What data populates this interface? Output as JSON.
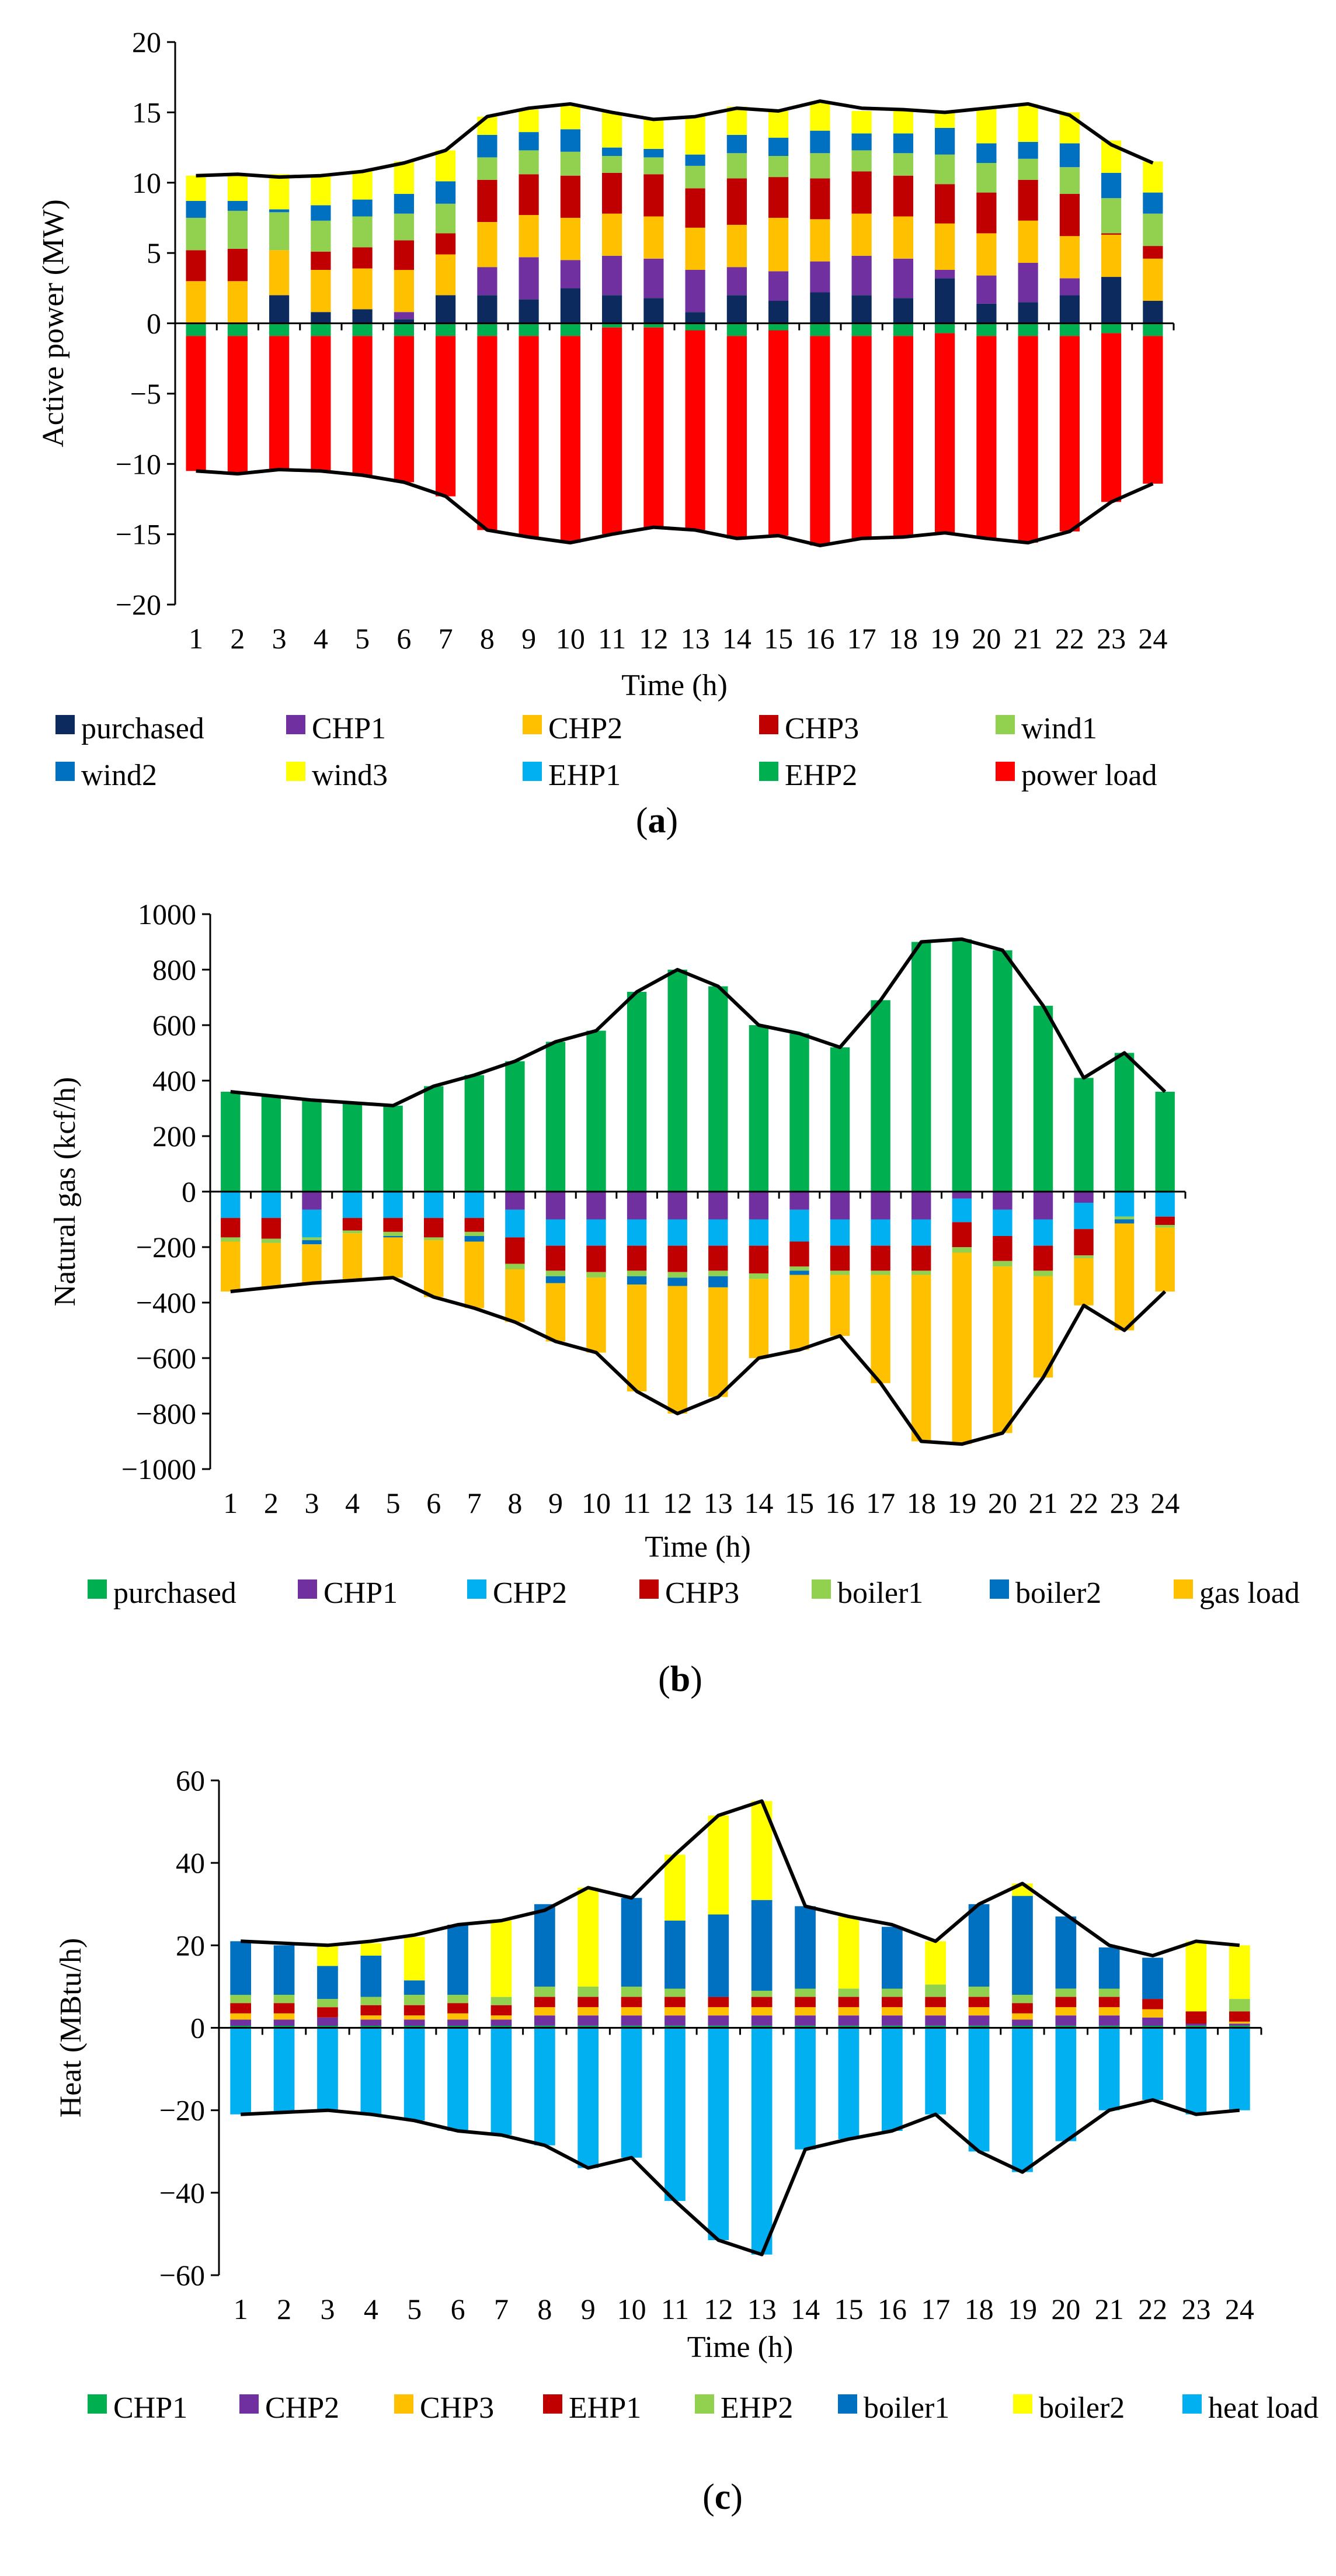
{
  "colors": {
    "purchased_power": "#0d2a5e",
    "chp1": "#7030a0",
    "chp2_power": "#ffc000",
    "chp3": "#c00000",
    "wind1": "#92d050",
    "wind2": "#0070c0",
    "wind3": "#ffff00",
    "ehp1_power": "#00b0f0",
    "ehp2_power": "#00b050",
    "power_load": "#ff0000",
    "purchased_gas": "#00b050",
    "chp2_gas": "#00b0f0",
    "boiler1": "#92d050",
    "boiler2": "#0070c0",
    "gas_load": "#ffc000",
    "chp1_heat": "#00b050",
    "chp2_heat": "#7030a0",
    "chp3_heat": "#ffc000",
    "ehp1_heat": "#c00000",
    "boiler1_heat": "#0070c0",
    "boiler2_heat": "#ffff00",
    "heat_load": "#00b0f0"
  },
  "chart_data": [
    {
      "id": "a",
      "type": "bar",
      "stacked": true,
      "caption_pre": "(",
      "caption_letter": "a",
      "caption_post": ")",
      "xlabel": "Time (h)",
      "ylabel": "Active power (MW)",
      "ylim": [
        -20,
        20
      ],
      "yticks": [
        -20,
        -15,
        -10,
        -5,
        0,
        5,
        10,
        15,
        20
      ],
      "ytick_labels": [
        "−20",
        "−15",
        "−10",
        "−5",
        "0",
        "5",
        "10",
        "15",
        "20"
      ],
      "categories": [
        "1",
        "2",
        "3",
        "4",
        "5",
        "6",
        "7",
        "8",
        "9",
        "10",
        "11",
        "12",
        "13",
        "14",
        "15",
        "16",
        "17",
        "18",
        "19",
        "20",
        "21",
        "22",
        "23",
        "24"
      ],
      "legend_cols": 5,
      "series": [
        {
          "name": "purchased",
          "color": "#0d2a5e",
          "values": [
            0,
            0,
            2,
            0.8,
            1,
            0.3,
            2,
            2,
            1.7,
            2.5,
            2,
            1.8,
            0.8,
            2,
            1.6,
            2.2,
            2,
            1.8,
            3.2,
            1.4,
            1.5,
            2,
            3.3,
            1.6
          ]
        },
        {
          "name": "CHP1",
          "color": "#7030a0",
          "values": [
            0,
            0,
            0,
            0,
            0,
            0.5,
            0,
            2,
            3,
            2,
            2.8,
            2.8,
            3,
            2,
            2.1,
            2.2,
            2.8,
            2.8,
            0.6,
            2,
            2.8,
            1.2,
            0,
            0
          ]
        },
        {
          "name": "CHP2",
          "color": "#ffc000",
          "values": [
            3,
            3,
            3.2,
            3,
            2.9,
            3,
            2.9,
            3.2,
            3,
            3,
            3,
            3,
            3,
            3,
            3.8,
            3,
            3,
            3,
            3.3,
            3,
            3,
            3,
            3,
            3
          ]
        },
        {
          "name": "CHP3",
          "color": "#c00000",
          "values": [
            2.2,
            2.3,
            0,
            1.3,
            1.5,
            2.1,
            1.5,
            3,
            2.9,
            3,
            2.9,
            3,
            2.8,
            3.3,
            2.9,
            2.9,
            3,
            2.9,
            2.8,
            2.9,
            2.9,
            3,
            0.1,
            0.9
          ]
        },
        {
          "name": "wind1",
          "color": "#92d050",
          "values": [
            2.3,
            2.7,
            2.7,
            2.2,
            2.2,
            1.9,
            2.1,
            1.6,
            1.7,
            1.7,
            1.2,
            1.2,
            1.6,
            1.8,
            1.5,
            1.8,
            1.5,
            1.6,
            2.1,
            2.1,
            1.5,
            1.9,
            2.5,
            2.3
          ]
        },
        {
          "name": "wind2",
          "color": "#0070c0",
          "values": [
            1.2,
            0.7,
            0.2,
            1.1,
            1.2,
            1.4,
            1.6,
            1.6,
            1.3,
            1.6,
            0.6,
            0.6,
            0.8,
            1.3,
            1.3,
            1.6,
            1.2,
            1.4,
            1.9,
            1.4,
            1.2,
            1.7,
            1.8,
            1.5
          ]
        },
        {
          "name": "wind3",
          "color": "#ffff00",
          "values": [
            1.8,
            1.9,
            2.5,
            2.1,
            2,
            2.3,
            2.2,
            1.3,
            1.6,
            1.8,
            2.5,
            2.1,
            2.7,
            2,
            1.9,
            2.1,
            1.6,
            1.6,
            1.1,
            2.5,
            2.7,
            2.2,
            2.3,
            2.2
          ]
        },
        {
          "name": "EHP1",
          "color": "#00b0f0",
          "values": [
            0,
            0,
            0,
            0,
            0,
            0,
            0,
            0,
            0,
            0,
            0,
            0,
            0,
            0,
            0,
            0,
            0,
            0,
            0,
            0,
            0,
            0,
            0,
            0
          ]
        },
        {
          "name": "EHP2",
          "color": "#00b050",
          "values": [
            -0.9,
            -0.9,
            -0.9,
            -0.9,
            -0.9,
            -0.9,
            -0.9,
            -0.9,
            -0.9,
            -0.9,
            -0.3,
            -0.3,
            -0.5,
            -0.9,
            -0.5,
            -0.9,
            -0.9,
            -0.9,
            -0.7,
            -0.9,
            -0.9,
            -0.9,
            -0.7,
            -0.9
          ]
        },
        {
          "name": "power load",
          "color": "#ff0000",
          "values": [
            -9.6,
            -9.8,
            -9.5,
            -9.6,
            -9.9,
            -10.4,
            -11.4,
            -13.8,
            -14.3,
            -14.7,
            -14.7,
            -14.2,
            -14.2,
            -14.4,
            -14.6,
            -14.9,
            -14.4,
            -14.3,
            -14.2,
            -14.4,
            -14.7,
            -13.9,
            -12.0,
            -10.5
          ]
        }
      ],
      "envelope_top": [
        10.5,
        10.6,
        10.4,
        10.5,
        10.8,
        11.4,
        12.3,
        14.7,
        15.3,
        15.6,
        15.0,
        14.5,
        14.7,
        15.3,
        15.1,
        15.8,
        15.3,
        15.2,
        15.0,
        15.3,
        15.6,
        14.8,
        12.7,
        11.4
      ],
      "envelope_bottom": [
        -10.5,
        -10.7,
        -10.4,
        -10.5,
        -10.8,
        -11.3,
        -12.3,
        -14.7,
        -15.2,
        -15.6,
        -15.0,
        -14.5,
        -14.7,
        -15.3,
        -15.1,
        -15.8,
        -15.3,
        -15.2,
        -14.9,
        -15.3,
        -15.6,
        -14.8,
        -12.7,
        -11.4
      ]
    },
    {
      "id": "b",
      "type": "bar",
      "stacked": true,
      "caption_pre": "(",
      "caption_letter": "b",
      "caption_post": ")",
      "xlabel": "Time (h)",
      "ylabel": "Natural gas (kcf/h)",
      "ylim": [
        -1000,
        1000
      ],
      "yticks": [
        -1000,
        -800,
        -600,
        -400,
        -200,
        0,
        200,
        400,
        600,
        800,
        1000
      ],
      "ytick_labels": [
        "−1000",
        "−800",
        "−600",
        "−400",
        "−200",
        "0",
        "200",
        "400",
        "600",
        "800",
        "1000"
      ],
      "categories": [
        "1",
        "2",
        "3",
        "4",
        "5",
        "6",
        "7",
        "8",
        "9",
        "10",
        "11",
        "12",
        "13",
        "14",
        "15",
        "16",
        "17",
        "18",
        "19",
        "20",
        "21",
        "22",
        "23",
        "24"
      ],
      "legend_cols": 7,
      "series": [
        {
          "name": "purchased",
          "color": "#00b050",
          "values": [
            360,
            345,
            330,
            320,
            310,
            380,
            420,
            470,
            540,
            580,
            720,
            800,
            740,
            600,
            570,
            520,
            690,
            900,
            910,
            870,
            670,
            410,
            500,
            360
          ]
        },
        {
          "name": "CHP1",
          "color": "#7030a0",
          "values": [
            0,
            0,
            -65,
            0,
            0,
            0,
            0,
            -65,
            -100,
            -100,
            -100,
            -100,
            -100,
            -100,
            -65,
            -100,
            -100,
            -100,
            -25,
            -65,
            -100,
            -40,
            0,
            0
          ]
        },
        {
          "name": "CHP2",
          "color": "#00b0f0",
          "values": [
            -95,
            -95,
            -100,
            -95,
            -95,
            -95,
            -95,
            -100,
            -95,
            -95,
            -95,
            -95,
            -95,
            -95,
            -115,
            -95,
            -95,
            -95,
            -85,
            -95,
            -95,
            -95,
            -90,
            -90
          ]
        },
        {
          "name": "CHP3",
          "color": "#c00000",
          "values": [
            -70,
            -75,
            0,
            -45,
            -50,
            -70,
            -50,
            -95,
            -90,
            -95,
            -90,
            -95,
            -90,
            -100,
            -90,
            -90,
            -90,
            -90,
            -90,
            -90,
            -90,
            -95,
            0,
            -30
          ]
        },
        {
          "name": "boiler1",
          "color": "#92d050",
          "values": [
            -15,
            -15,
            -10,
            -10,
            -15,
            -10,
            -15,
            -20,
            -20,
            -20,
            -20,
            -20,
            -20,
            -20,
            -15,
            -15,
            -15,
            -15,
            -20,
            -20,
            -20,
            -10,
            -10,
            -10
          ]
        },
        {
          "name": "boiler2",
          "color": "#0070c0",
          "values": [
            0,
            0,
            -15,
            0,
            -5,
            0,
            -20,
            0,
            -25,
            0,
            -30,
            -30,
            -40,
            0,
            -15,
            0,
            0,
            0,
            0,
            0,
            0,
            0,
            -15,
            0
          ]
        },
        {
          "name": "gas load",
          "color": "#ffc000",
          "values": [
            -180,
            -160,
            -140,
            -170,
            -145,
            -205,
            -240,
            -190,
            -210,
            -270,
            -385,
            -460,
            -395,
            -285,
            -270,
            -220,
            -390,
            -600,
            -690,
            -600,
            -365,
            -170,
            -385,
            -230
          ]
        }
      ],
      "envelope_top": [
        360,
        345,
        330,
        320,
        310,
        380,
        420,
        470,
        540,
        580,
        720,
        800,
        740,
        600,
        570,
        520,
        690,
        900,
        910,
        870,
        670,
        410,
        500,
        360
      ],
      "envelope_bottom": [
        -360,
        -345,
        -330,
        -320,
        -310,
        -380,
        -420,
        -470,
        -540,
        -580,
        -720,
        -800,
        -740,
        -600,
        -570,
        -520,
        -690,
        -900,
        -910,
        -870,
        -670,
        -410,
        -500,
        -360
      ]
    },
    {
      "id": "c",
      "type": "bar",
      "stacked": true,
      "caption_pre": "(",
      "caption_letter": "c",
      "caption_post": ")",
      "xlabel": "Time (h)",
      "ylabel": "Heat (MBtu/h)",
      "ylim": [
        -60,
        60
      ],
      "yticks": [
        -60,
        -40,
        -20,
        0,
        20,
        40,
        60
      ],
      "ytick_labels": [
        "−60",
        "−40",
        "−20",
        "0",
        "20",
        "40",
        "60"
      ],
      "categories": [
        "1",
        "2",
        "3",
        "4",
        "5",
        "6",
        "7",
        "8",
        "9",
        "10",
        "11",
        "12",
        "13",
        "14",
        "15",
        "16",
        "17",
        "18",
        "19",
        "20",
        "21",
        "22",
        "23",
        "24"
      ],
      "legend_cols": 8,
      "series": [
        {
          "name": "CHP1",
          "color": "#00b050",
          "values": [
            0.5,
            0.5,
            0.5,
            0.5,
            0.5,
            0.5,
            0.5,
            0.5,
            0.5,
            0.5,
            0.5,
            0.5,
            0.5,
            0.5,
            0.5,
            0.5,
            0.5,
            0.5,
            0.5,
            0.5,
            0.5,
            0.5,
            0.5,
            0.5
          ]
        },
        {
          "name": "CHP2",
          "color": "#7030a0",
          "values": [
            1.5,
            1.5,
            2,
            1.5,
            1.5,
            1.5,
            1.5,
            2.5,
            2.5,
            2.5,
            2.5,
            2.5,
            2.5,
            2.5,
            2.5,
            2.5,
            2.5,
            2.5,
            1.5,
            2.5,
            2.5,
            2,
            0.5,
            0.5
          ]
        },
        {
          "name": "CHP3",
          "color": "#ffc000",
          "values": [
            1.5,
            1.5,
            0,
            1,
            1,
            1.5,
            1,
            2,
            2,
            2,
            2,
            2,
            2,
            2,
            2,
            2,
            2,
            2,
            1.5,
            2,
            2,
            2,
            0,
            0.5
          ]
        },
        {
          "name": "EHP1",
          "color": "#c00000",
          "values": [
            2.5,
            2.5,
            2.5,
            2.5,
            2.5,
            2.5,
            2.5,
            2.5,
            2.5,
            2.5,
            2.5,
            2.5,
            2.5,
            2.5,
            2.5,
            2.5,
            2.5,
            2.5,
            2.5,
            2.5,
            2.5,
            2.5,
            3,
            2.5
          ]
        },
        {
          "name": "EHP2",
          "color": "#92d050",
          "values": [
            2,
            2,
            2,
            2,
            2.5,
            2,
            2,
            2.5,
            2.5,
            2.5,
            2,
            0,
            1.5,
            2,
            2,
            2,
            3,
            2.5,
            2,
            2,
            2,
            0,
            0,
            3
          ]
        },
        {
          "name": "boiler1",
          "color": "#0070c0",
          "values": [
            13,
            12,
            8,
            10,
            3.5,
            17,
            0,
            20,
            0,
            21.5,
            16.5,
            20,
            22,
            20,
            0,
            15,
            0,
            20,
            24,
            17.5,
            10,
            10,
            0,
            0
          ]
        },
        {
          "name": "boiler2",
          "color": "#ffff00",
          "values": [
            0,
            0,
            5,
            3,
            10.5,
            0,
            18.5,
            0,
            24,
            0,
            16,
            24,
            24,
            0,
            17.5,
            0,
            10.5,
            0,
            3,
            0,
            0,
            0,
            17,
            13
          ]
        },
        {
          "name": "heat load",
          "color": "#00b0f0",
          "values": [
            -21,
            -20.5,
            -20,
            -21,
            -22.5,
            -25,
            -26,
            -28.5,
            -34,
            -31.5,
            -42,
            -51.5,
            -55,
            -29.5,
            -27,
            -25,
            -21,
            -30,
            -35,
            -27.5,
            -20,
            -17.5,
            -21,
            -20
          ]
        }
      ],
      "envelope_top": [
        21,
        20.5,
        20,
        21,
        22.5,
        25,
        26,
        28.5,
        34,
        31.5,
        42,
        51.5,
        55,
        29.5,
        27,
        25,
        21,
        30,
        35,
        27.5,
        20,
        17.5,
        21,
        20
      ],
      "envelope_bottom": [
        -21,
        -20.5,
        -20,
        -21,
        -22.5,
        -25,
        -26,
        -28.5,
        -34,
        -31.5,
        -42,
        -51.5,
        -55,
        -29.5,
        -27,
        -25,
        -21,
        -30,
        -35,
        -27.5,
        -20,
        -17.5,
        -21,
        -20
      ]
    }
  ]
}
